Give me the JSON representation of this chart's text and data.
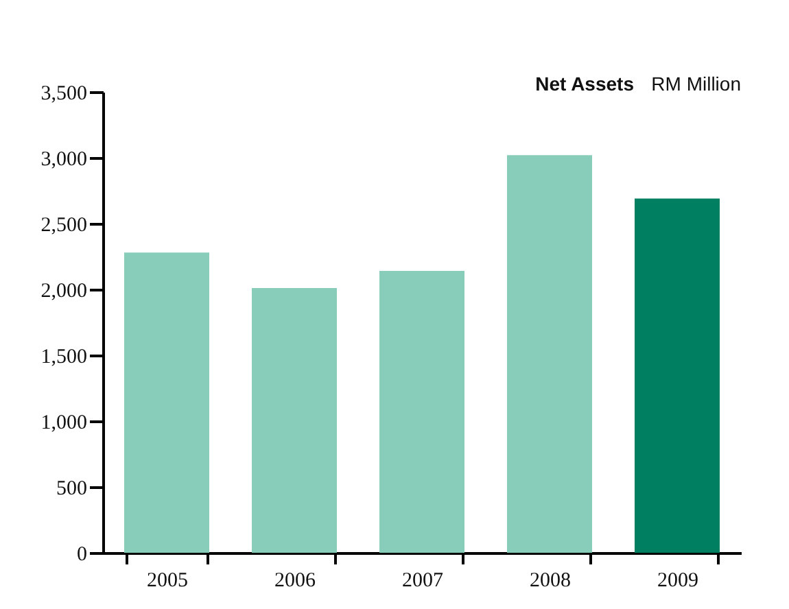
{
  "chart_data": {
    "type": "bar",
    "title": "Net Assets",
    "subtitle": "RM Million",
    "categories": [
      "2005",
      "2006",
      "2007",
      "2008",
      "2009"
    ],
    "values": [
      2280,
      2010,
      2140,
      3020,
      2690
    ],
    "colors": [
      "#87cdb9",
      "#87cdb9",
      "#87cdb9",
      "#87cdb9",
      "#008060"
    ],
    "ylim": [
      0,
      3500
    ],
    "yticks": [
      0,
      500,
      {
        "value": 1000,
        "label": "1,000"
      },
      {
        "value": 1500,
        "label": "1,500"
      },
      {
        "value": 2000,
        "label": "2,000"
      },
      {
        "value": 2500,
        "label": "2,500"
      },
      {
        "value": 3000,
        "label": "3,000"
      },
      {
        "value": 3500,
        "label": "3,500"
      }
    ],
    "grid": false
  }
}
